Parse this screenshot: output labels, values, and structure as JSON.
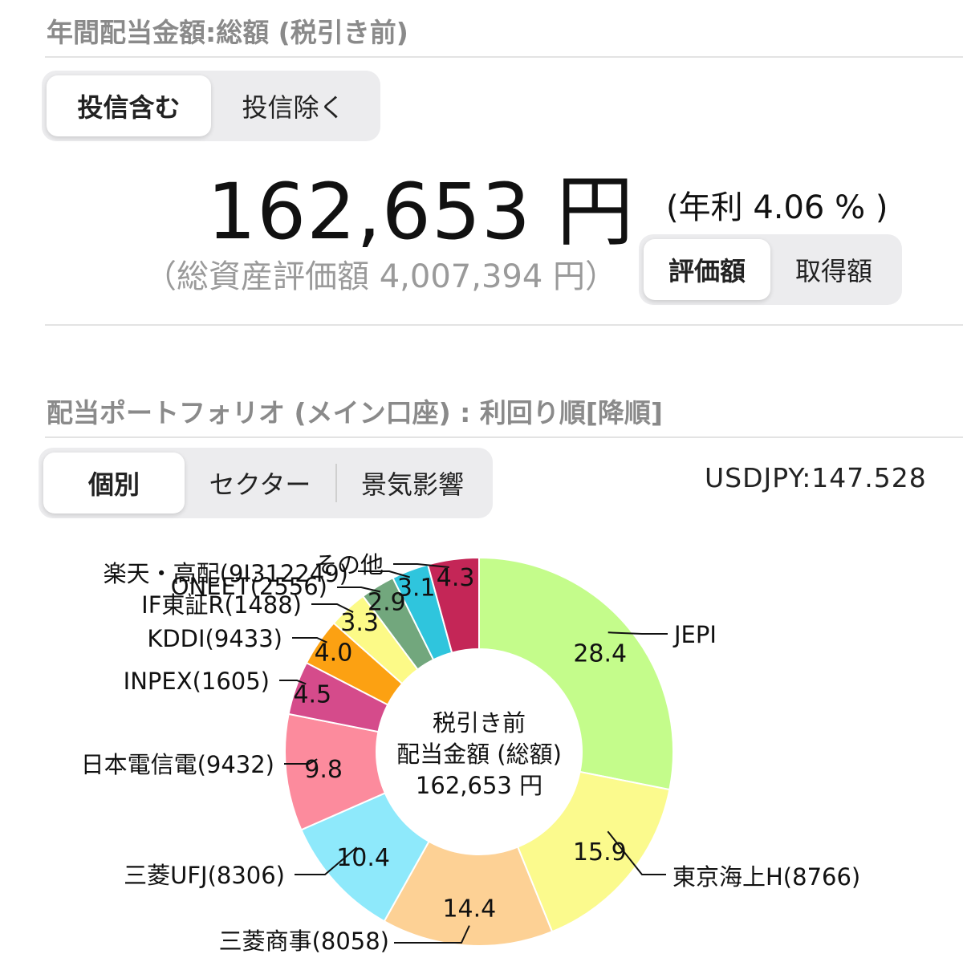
{
  "header": {
    "title": "年間配当金額:総額 (税引き前)"
  },
  "fund_toggle": {
    "options": [
      "投信含む",
      "投信除く"
    ],
    "selected": "投信含む"
  },
  "summary": {
    "total_amount": "162,653 円",
    "annual_yield": "(年利 4.06 % )",
    "total_assets": "（総資産評価額 4,007,394 円）"
  },
  "basis_toggle": {
    "options": [
      "評価額",
      "取得額"
    ],
    "selected": "評価額"
  },
  "portfolio": {
    "title": "配当ポートフォリオ (メイン口座) : 利回り順[降順]",
    "tabs": [
      "個別",
      "セクター",
      "景気影響"
    ],
    "selected_tab": "個別",
    "fx_rate": "USDJPY:147.528"
  },
  "chart_data": {
    "type": "pie",
    "donut": true,
    "center_text": [
      "税引き前",
      "配当金額 (総額)",
      "162,653 円"
    ],
    "slices": [
      {
        "name": "JEPI",
        "value": 28.4,
        "color": "#c4fc8b"
      },
      {
        "name": "東京海上H(8766)",
        "value": 15.9,
        "color": "#fbfa8d"
      },
      {
        "name": "三菱商事(8058)",
        "value": 14.4,
        "color": "#fdd195"
      },
      {
        "name": "三菱UFJ(8306)",
        "value": 10.4,
        "color": "#8ee9fb"
      },
      {
        "name": "日本電信電(9432)",
        "value": 9.8,
        "color": "#fc8b9d"
      },
      {
        "name": "INPEX(1605)",
        "value": 4.5,
        "color": "#d54b8b"
      },
      {
        "name": "KDDI(9433)",
        "value": 4.0,
        "color": "#fca112"
      },
      {
        "name": "IF東証R(1488)",
        "value": 3.3,
        "color": "#fcfa87"
      },
      {
        "name": "ONEET(2556)",
        "value": 2.9,
        "color": "#72a77d"
      },
      {
        "name": "楽天・高配(9I312249)",
        "value": 3.1,
        "color": "#2fc5dd"
      },
      {
        "name": "その他",
        "value": 4.3,
        "color": "#c42657"
      }
    ]
  }
}
